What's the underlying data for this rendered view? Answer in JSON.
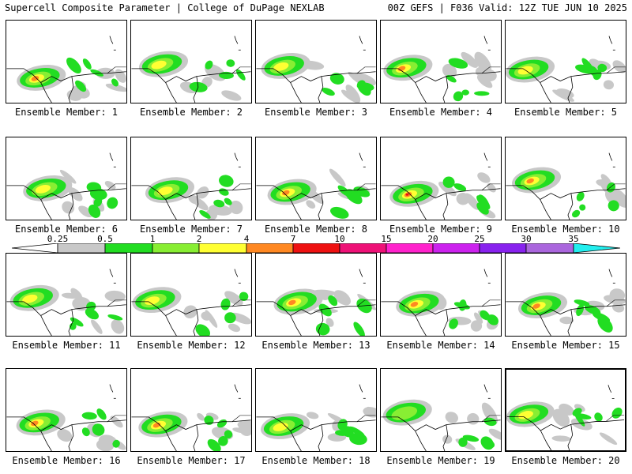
{
  "header": {
    "title_left": "Supercell Composite Parameter | College of DuPage NEXLAB",
    "title_right": "00Z GEFS | F036 Valid: 12Z TUE JUN 10 2025"
  },
  "colorbar": {
    "labels": [
      "0.25",
      "0.5",
      "1",
      "2",
      "4",
      "7",
      "10",
      "15",
      "20",
      "25",
      "30",
      "35"
    ],
    "colors": [
      "#c8c8c8",
      "#22dd22",
      "#88ee33",
      "#ffff33",
      "#ff8822",
      "#ee1111",
      "#ee1177",
      "#ff22cc",
      "#cc22ee",
      "#8822ee",
      "#aa66dd",
      "#22eeee"
    ]
  },
  "members": [
    {
      "label": "Ensemble Member: 1",
      "max_level": 4
    },
    {
      "label": "Ensemble Member: 2",
      "max_level": 3
    },
    {
      "label": "Ensemble Member: 3",
      "max_level": 3
    },
    {
      "label": "Ensemble Member: 4",
      "max_level": 4
    },
    {
      "label": "Ensemble Member: 5",
      "max_level": 3
    },
    {
      "label": "Ensemble Member: 6",
      "max_level": 3
    },
    {
      "label": "Ensemble Member: 7",
      "max_level": 3
    },
    {
      "label": "Ensemble Member: 8",
      "max_level": 4
    },
    {
      "label": "Ensemble Member: 9",
      "max_level": 5
    },
    {
      "label": "Ensemble Member: 10",
      "max_level": 4
    },
    {
      "label": "Ensemble Member: 11",
      "max_level": 3
    },
    {
      "label": "Ensemble Member: 12",
      "max_level": 3
    },
    {
      "label": "Ensemble Member: 13",
      "max_level": 4
    },
    {
      "label": "Ensemble Member: 14",
      "max_level": 4
    },
    {
      "label": "Ensemble Member: 15",
      "max_level": 4
    },
    {
      "label": "Ensemble Member: 16",
      "max_level": 4
    },
    {
      "label": "Ensemble Member: 17",
      "max_level": 4
    },
    {
      "label": "Ensemble Member: 18",
      "max_level": 3
    },
    {
      "label": "Ensemble Member: 19",
      "max_level": 2
    },
    {
      "label": "Ensemble Member: 20",
      "max_level": 3,
      "selected": true
    }
  ]
}
